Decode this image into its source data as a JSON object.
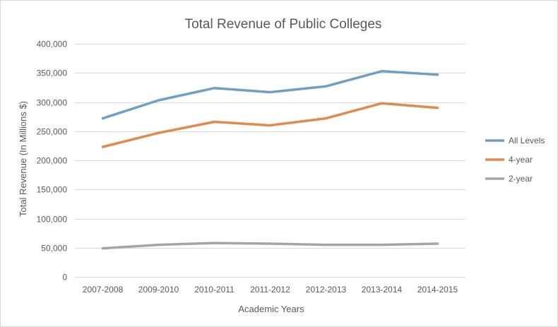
{
  "chart_data": {
    "type": "line",
    "title": "Total Revenue of Public Colleges",
    "xlabel": "Academic Years",
    "ylabel": "Total Revenue  (In Millions $)",
    "categories": [
      "2007-2008",
      "2009-2010",
      "2010-2011",
      "2011-2012",
      "2012-2013",
      "2013-2014",
      "2014-2015"
    ],
    "ylim": [
      0,
      400000
    ],
    "yticks": [
      0,
      50000,
      100000,
      150000,
      200000,
      250000,
      300000,
      350000,
      400000
    ],
    "ytick_labels": [
      "0",
      "50,000",
      "100,000",
      "150,000",
      "200,000",
      "250,000",
      "300,000",
      "350,000",
      "400,000"
    ],
    "grid": true,
    "legend_position": "right",
    "series": [
      {
        "name": "All Levels",
        "color": "#6f9fc4",
        "values": [
          272000,
          303000,
          324000,
          317000,
          327000,
          353000,
          347000
        ]
      },
      {
        "name": "4-year",
        "color": "#e08a4f",
        "values": [
          223000,
          247000,
          266000,
          260000,
          272000,
          298000,
          290000
        ]
      },
      {
        "name": "2-year",
        "color": "#a5a5a5",
        "values": [
          49000,
          55000,
          58000,
          57000,
          55000,
          55000,
          57000
        ]
      }
    ]
  }
}
